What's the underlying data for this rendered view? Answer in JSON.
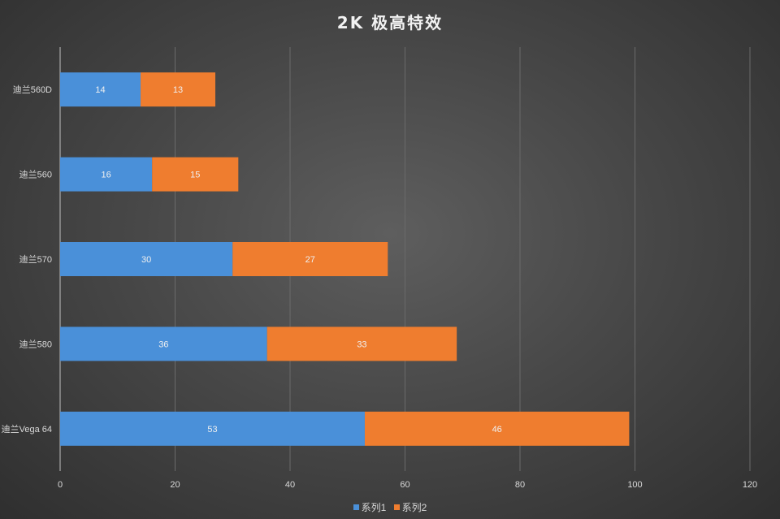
{
  "chart_data": {
    "type": "bar",
    "orientation": "horizontal",
    "stacked": true,
    "title": "2K 极高特效",
    "categories": [
      "迪兰560D",
      "迪兰560",
      "迪兰570",
      "迪兰580",
      "迪兰Vega 64"
    ],
    "series": [
      {
        "name": "系列1",
        "values": [
          14,
          16,
          30,
          36,
          53
        ],
        "color": "#4a90d9"
      },
      {
        "name": "系列2",
        "values": [
          13,
          15,
          27,
          33,
          46
        ],
        "color": "#ef7d2f"
      }
    ],
    "xlim": [
      0,
      120
    ],
    "x_ticks": [
      "0",
      "20",
      "40",
      "60",
      "80",
      "100",
      "120"
    ],
    "grid": "vertical",
    "legend": "bottom",
    "data_labels": true
  }
}
